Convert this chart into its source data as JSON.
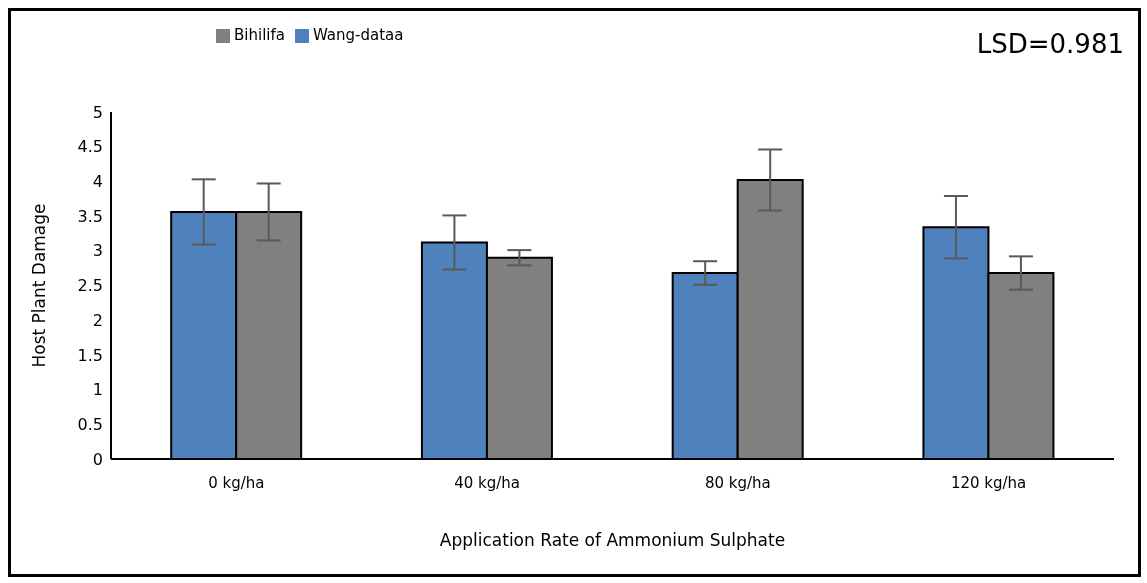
{
  "chart_data": {
    "type": "bar",
    "xlabel": "Application Rate of Ammonium Sulphate",
    "ylabel": "Host Plant Damage",
    "annotations": [
      "LSD=0.981"
    ],
    "categories": [
      "0 kg/ha",
      "40 kg/ha",
      "80 kg/ha",
      "120 kg/ha"
    ],
    "series": [
      {
        "name": "Wang-dataa",
        "color": "#4f81bd",
        "values": [
          3.56,
          3.12,
          2.68,
          3.34
        ],
        "errors": [
          0.47,
          0.39,
          0.17,
          0.45
        ]
      },
      {
        "name": "Bihilifa",
        "color": "#808080",
        "values": [
          3.56,
          2.9,
          4.02,
          2.68
        ],
        "errors": [
          0.41,
          0.11,
          0.44,
          0.24
        ]
      }
    ],
    "ylim": [
      0,
      5
    ],
    "yticks": [
      0,
      0.5,
      1,
      1.5,
      2,
      2.5,
      3,
      3.5,
      4,
      4.5,
      5
    ],
    "grid": false,
    "legend": "top left"
  }
}
